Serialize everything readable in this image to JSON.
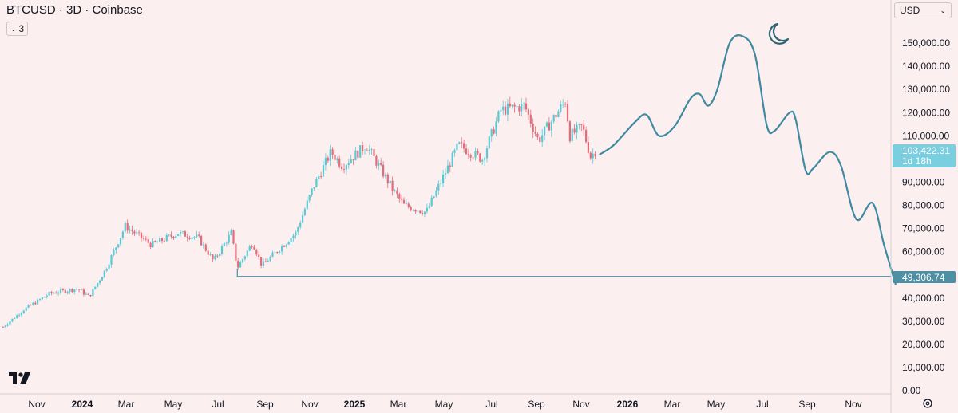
{
  "header": {
    "title": "BTCUSD · 3D · Coinbase",
    "interval_value": "3"
  },
  "currency_select": {
    "value": "USD"
  },
  "colors": {
    "up": "#5bc8d3",
    "down": "#e36b7a",
    "forecast": "#3f8aa0",
    "support": "#5b9ab0",
    "price_tag": "#79cfe0",
    "level_tag": "#4d8fa3"
  },
  "price_tag": {
    "price": "103,422.31",
    "countdown": "1d 18h"
  },
  "level_tag": {
    "value": "49,306.74"
  },
  "chart_data": {
    "type": "candlestick",
    "y_axis": {
      "range": [
        0,
        160000
      ],
      "ticks": [
        "0.00",
        "10,000.00",
        "20,000.00",
        "30,000.00",
        "40,000.00",
        "50,000.00",
        "60,000.00",
        "70,000.00",
        "80,000.00",
        "90,000.00",
        "100,000.00",
        "110,000.00",
        "120,000.00",
        "130,000.00",
        "140,000.00",
        "150,000.00"
      ]
    },
    "x_axis": {
      "labels": [
        {
          "text": "Nov",
          "bold": false
        },
        {
          "text": "2024",
          "bold": true
        },
        {
          "text": "Mar",
          "bold": false
        },
        {
          "text": "May",
          "bold": false
        },
        {
          "text": "Jul",
          "bold": false
        },
        {
          "text": "Sep",
          "bold": false
        },
        {
          "text": "Nov",
          "bold": false
        },
        {
          "text": "2025",
          "bold": true
        },
        {
          "text": "Mar",
          "bold": false
        },
        {
          "text": "May",
          "bold": false
        },
        {
          "text": "Jul",
          "bold": false
        },
        {
          "text": "Sep",
          "bold": false
        },
        {
          "text": "Nov",
          "bold": false
        },
        {
          "text": "2026",
          "bold": true
        },
        {
          "text": "Mar",
          "bold": false
        },
        {
          "text": "May",
          "bold": false
        },
        {
          "text": "Jul",
          "bold": false
        },
        {
          "text": "Sep",
          "bold": false
        },
        {
          "text": "Nov",
          "bold": false
        }
      ]
    },
    "price_anchors": [
      [
        "2023-10-05",
        27500
      ],
      [
        "2023-11-01",
        35000
      ],
      [
        "2023-12-05",
        42000
      ],
      [
        "2024-01-10",
        44000
      ],
      [
        "2024-01-25",
        40500
      ],
      [
        "2024-02-15",
        52000
      ],
      [
        "2024-03-12",
        71000
      ],
      [
        "2024-04-15",
        63000
      ],
      [
        "2024-05-20",
        68000
      ],
      [
        "2024-06-15",
        66000
      ],
      [
        "2024-07-05",
        56000
      ],
      [
        "2024-07-28",
        68000
      ],
      [
        "2024-08-05",
        53000
      ],
      [
        "2024-08-25",
        64000
      ],
      [
        "2024-09-06",
        54000
      ],
      [
        "2024-10-20",
        68000
      ],
      [
        "2024-11-12",
        88000
      ],
      [
        "2024-12-05",
        103000
      ],
      [
        "2024-12-20",
        97000
      ],
      [
        "2025-01-20",
        106000
      ],
      [
        "2025-02-25",
        86000
      ],
      [
        "2025-03-10",
        80000
      ],
      [
        "2025-04-08",
        77000
      ],
      [
        "2025-05-20",
        106000
      ],
      [
        "2025-06-20",
        100000
      ],
      [
        "2025-07-14",
        121000
      ],
      [
        "2025-08-14",
        123000
      ],
      [
        "2025-09-01",
        108000
      ],
      [
        "2025-10-06",
        125000
      ],
      [
        "2025-10-12",
        110000
      ],
      [
        "2025-10-28",
        114000
      ],
      [
        "2025-11-08",
        101000
      ],
      [
        "2025-11-14",
        103422
      ]
    ],
    "support_line": {
      "value": 49306.74,
      "from": "2024-08-05"
    },
    "forecast_path": [
      [
        "2025-11-20",
        102000
      ],
      [
        "2025-12-08",
        106000
      ],
      [
        "2026-01-05",
        116000
      ],
      [
        "2026-01-20",
        119000
      ],
      [
        "2026-02-05",
        110000
      ],
      [
        "2026-02-25",
        114000
      ],
      [
        "2026-03-18",
        126000
      ],
      [
        "2026-03-30",
        128000
      ],
      [
        "2026-04-10",
        123000
      ],
      [
        "2026-04-22",
        130000
      ],
      [
        "2026-05-08",
        150000
      ],
      [
        "2026-05-25",
        153000
      ],
      [
        "2026-06-10",
        145000
      ],
      [
        "2026-06-25",
        115000
      ],
      [
        "2026-07-05",
        112000
      ],
      [
        "2026-07-25",
        120000
      ],
      [
        "2026-08-02",
        117000
      ],
      [
        "2026-08-15",
        95000
      ],
      [
        "2026-08-25",
        96000
      ],
      [
        "2026-09-15",
        103000
      ],
      [
        "2026-09-30",
        97000
      ],
      [
        "2026-10-20",
        74000
      ],
      [
        "2026-11-10",
        81000
      ],
      [
        "2026-11-25",
        63000
      ],
      [
        "2026-12-10",
        46000
      ]
    ]
  }
}
